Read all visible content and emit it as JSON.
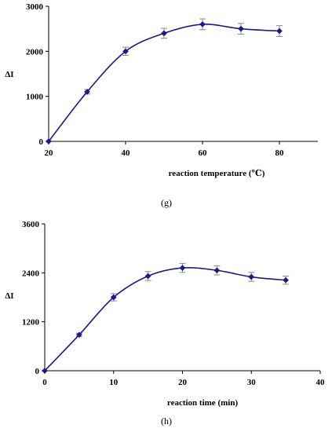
{
  "chart_data": [
    {
      "type": "line",
      "panel_label": "(g)",
      "title": "",
      "xlabel": "reaction temperature (℃)",
      "ylabel": "ΔI",
      "xlim": [
        20,
        90
      ],
      "ylim": [
        0,
        3000
      ],
      "xticks": [
        20,
        40,
        60,
        80
      ],
      "yticks": [
        0,
        1000,
        2000,
        3000
      ],
      "grid": false,
      "series": [
        {
          "color": "#1a1a8c",
          "x": [
            20,
            30,
            40,
            50,
            60,
            70,
            80
          ],
          "y": [
            0,
            1100,
            2000,
            2400,
            2600,
            2500,
            2450
          ],
          "error": [
            0,
            50,
            90,
            110,
            120,
            120,
            120
          ]
        }
      ]
    },
    {
      "type": "line",
      "panel_label": "(h)",
      "title": "",
      "xlabel": "reaction time (min)",
      "ylabel": "ΔI",
      "xlim": [
        0,
        40
      ],
      "ylim": [
        0,
        3600
      ],
      "xticks": [
        0,
        10,
        20,
        30,
        40
      ],
      "yticks": [
        0,
        1200,
        2400,
        3600
      ],
      "grid": false,
      "series": [
        {
          "color": "#1a1a8c",
          "x": [
            0,
            5,
            10,
            15,
            20,
            25,
            30,
            35
          ],
          "y": [
            0,
            880,
            1800,
            2320,
            2520,
            2460,
            2300,
            2220
          ],
          "error": [
            0,
            40,
            90,
            110,
            110,
            110,
            110,
            100
          ]
        }
      ]
    }
  ]
}
